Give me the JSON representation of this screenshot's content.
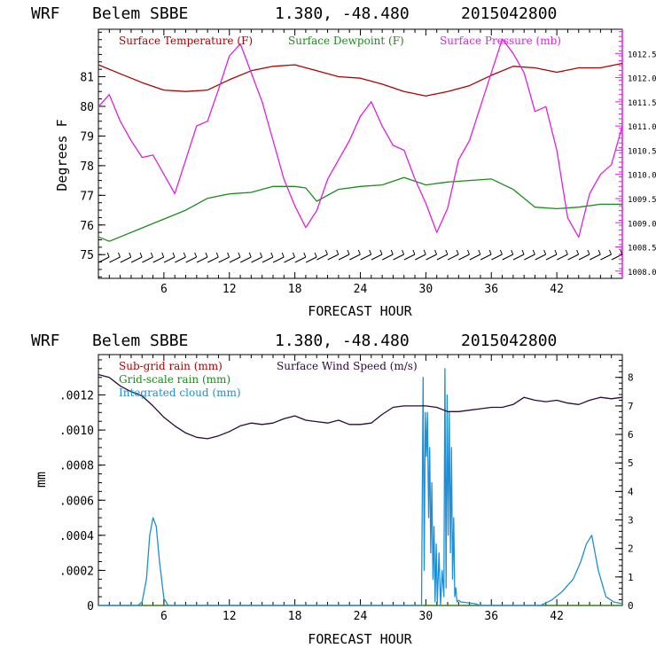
{
  "chart_data": [
    {
      "type": "line",
      "header": {
        "model": "WRF",
        "station": "Belem SBBE",
        "coords": "1.380, -48.480",
        "init": "2015042800"
      },
      "xlabel": "FORECAST HOUR",
      "ylabel": "Degrees F",
      "xlim": [
        0,
        48
      ],
      "ylim": [
        74.2,
        82.6
      ],
      "y2lim": [
        1007.85,
        1013.0
      ],
      "x_ticks": [
        "6",
        "12",
        "18",
        "24",
        "30",
        "36",
        "42"
      ],
      "y_ticks": [
        "75",
        "76",
        "77",
        "78",
        "79",
        "80",
        "81"
      ],
      "y2_ticks": [
        "1008.0",
        "1008.5",
        "1009.0",
        "1009.5",
        "1010.0",
        "1010.5",
        "1011.0",
        "1011.5",
        "1012.0",
        "1012.5"
      ],
      "colors": {
        "temp": "#b00000",
        "dew": "#1a8c1a",
        "pres": "#e020e0",
        "wind": "#000000"
      },
      "series": [
        {
          "name": "Surface Temperature (F)",
          "axis": "left",
          "color": "#b00000",
          "x": [
            0,
            2,
            4,
            6,
            8,
            10,
            12,
            14,
            16,
            18,
            20,
            22,
            24,
            26,
            28,
            30,
            32,
            34,
            36,
            38,
            40,
            42,
            44,
            46,
            48
          ],
          "values": [
            81.4,
            81.1,
            80.8,
            80.55,
            80.5,
            80.55,
            80.9,
            81.2,
            81.35,
            81.4,
            81.2,
            81.0,
            80.95,
            80.75,
            80.5,
            80.35,
            80.5,
            80.7,
            81.05,
            81.35,
            81.3,
            81.15,
            81.3,
            81.3,
            81.45
          ]
        },
        {
          "name": "Surface Dewpoint (F)",
          "axis": "left",
          "color": "#1a8c1a",
          "x": [
            0,
            1,
            2,
            4,
            6,
            8,
            10,
            12,
            14,
            16,
            18,
            19,
            20,
            22,
            24,
            26,
            28,
            30,
            32,
            34,
            36,
            38,
            40,
            42,
            44,
            46,
            48
          ],
          "values": [
            75.6,
            75.45,
            75.6,
            75.9,
            76.2,
            76.5,
            76.9,
            77.05,
            77.1,
            77.3,
            77.3,
            77.25,
            76.8,
            77.2,
            77.3,
            77.35,
            77.6,
            77.35,
            77.45,
            77.5,
            77.55,
            77.2,
            76.6,
            76.55,
            76.6,
            76.7,
            76.7
          ]
        },
        {
          "name": "Surface Pressure (mb)",
          "axis": "right",
          "color": "#e020e0",
          "x": [
            0,
            1,
            2,
            3,
            4,
            5,
            6,
            7,
            8,
            9,
            10,
            11,
            12,
            13,
            14,
            15,
            16,
            17,
            18,
            19,
            20,
            21,
            22,
            23,
            24,
            25,
            26,
            27,
            28,
            29,
            30,
            31,
            32,
            33,
            34,
            35,
            36,
            37,
            38,
            39,
            40,
            41,
            42,
            43,
            44,
            45,
            46,
            47,
            48
          ],
          "values": [
            1011.4,
            1011.65,
            1011.1,
            1010.7,
            1010.35,
            1010.4,
            1010.0,
            1009.6,
            1010.3,
            1011.0,
            1011.1,
            1011.75,
            1012.45,
            1012.7,
            1012.1,
            1011.5,
            1010.7,
            1009.9,
            1009.35,
            1008.9,
            1009.25,
            1009.9,
            1010.3,
            1010.7,
            1011.2,
            1011.5,
            1011.0,
            1010.6,
            1010.5,
            1009.9,
            1009.4,
            1008.8,
            1009.3,
            1010.3,
            1010.7,
            1011.4,
            1012.1,
            1012.8,
            1012.5,
            1012.1,
            1011.3,
            1011.4,
            1010.5,
            1009.1,
            1008.7,
            1009.6,
            1010.0,
            1010.2,
            1011.0
          ]
        }
      ]
    },
    {
      "type": "line",
      "header": {
        "model": "WRF",
        "station": "Belem SBBE",
        "coords": "1.380, -48.480",
        "init": "2015042800"
      },
      "xlabel": "FORECAST HOUR",
      "ylabel": "mm",
      "xlim": [
        0,
        48
      ],
      "ylim": [
        0,
        0.00143
      ],
      "y2lim": [
        0,
        8.8
      ],
      "x_ticks": [
        "6",
        "12",
        "18",
        "24",
        "30",
        "36",
        "42"
      ],
      "y_ticks": [
        "0",
        ".0002",
        ".0004",
        ".0006",
        ".0008",
        ".0010",
        ".0012"
      ],
      "y2_ticks": [
        "0",
        "1",
        "2",
        "3",
        "4",
        "5",
        "6",
        "7",
        "8"
      ],
      "colors": {
        "subgrid": "#b00000",
        "gridscale": "#1a8c1a",
        "cloud": "#1e8fd6",
        "wind": "#2a0a3a"
      },
      "series": [
        {
          "name": "Sub-grid rain (mm)",
          "axis": "left",
          "color": "#b00000",
          "x": [
            0,
            48
          ],
          "values": [
            0,
            0
          ]
        },
        {
          "name": "Grid-scale rain (mm)",
          "axis": "left",
          "color": "#1a8c1a",
          "x": [
            0,
            48
          ],
          "values": [
            0,
            0
          ]
        },
        {
          "name": "Integrated cloud (mm)",
          "axis": "left",
          "color": "#1e8fd6",
          "x": [
            0,
            3.6,
            4.0,
            4.4,
            4.7,
            5.0,
            5.3,
            5.6,
            6.0,
            6.4,
            29.6,
            29.75,
            29.85,
            29.95,
            30.05,
            30.15,
            30.25,
            30.35,
            30.45,
            30.55,
            30.65,
            30.75,
            30.85,
            30.95,
            31.05,
            31.2,
            31.35,
            31.5,
            31.65,
            31.75,
            31.85,
            31.95,
            32.05,
            32.15,
            32.25,
            32.35,
            32.45,
            32.55,
            32.65,
            32.75,
            32.85,
            33.0,
            33.2,
            34.5,
            35.0,
            40.5,
            41.5,
            42.5,
            43.5,
            44.2,
            44.7,
            45.2,
            45.8,
            46.5,
            47.2,
            48
          ],
          "values": [
            0,
            0,
            2e-05,
            0.00015,
            0.0004,
            0.0005,
            0.00045,
            0.00025,
            4e-05,
            0,
            0,
            0.0013,
            0.0002,
            0.0011,
            0.00085,
            0.0011,
            0.0005,
            0.0009,
            0.0003,
            0.0007,
            0.00015,
            0.00045,
            2e-05,
            0.00035,
            1e-05,
            0.0003,
            0,
            0.0002,
            5e-05,
            0.00135,
            0.0001,
            0.0012,
            0.0004,
            0.0011,
            0.0003,
            0.0009,
            0.00015,
            0.0005,
            5e-05,
            0.0001,
            2e-05,
            3e-05,
            2e-05,
            1e-05,
            0,
            0,
            3e-05,
            8e-05,
            0.00015,
            0.00025,
            0.00035,
            0.0004,
            0.0002,
            5e-05,
            2e-05,
            1e-05
          ]
        },
        {
          "name": "Surface Wind Speed (m/s)",
          "axis": "right",
          "color": "#2a0a3a",
          "x": [
            0,
            1,
            2,
            3,
            4,
            5,
            6,
            7,
            8,
            9,
            10,
            11,
            12,
            13,
            14,
            15,
            16,
            17,
            18,
            19,
            20,
            21,
            22,
            23,
            24,
            25,
            26,
            27,
            28,
            29,
            30,
            31,
            32,
            33,
            34,
            35,
            36,
            37,
            38,
            39,
            40,
            41,
            42,
            43,
            44,
            45,
            46,
            47,
            48
          ],
          "values": [
            8.1,
            8.0,
            7.7,
            7.5,
            7.35,
            7.0,
            6.6,
            6.3,
            6.05,
            5.9,
            5.85,
            5.95,
            6.1,
            6.3,
            6.4,
            6.35,
            6.4,
            6.55,
            6.65,
            6.5,
            6.45,
            6.4,
            6.5,
            6.35,
            6.35,
            6.4,
            6.7,
            6.95,
            7.0,
            7.0,
            7.0,
            6.95,
            6.8,
            6.8,
            6.85,
            6.9,
            6.95,
            6.95,
            7.05,
            7.3,
            7.2,
            7.15,
            7.2,
            7.1,
            7.05,
            7.2,
            7.3,
            7.25,
            7.3
          ]
        }
      ]
    }
  ]
}
